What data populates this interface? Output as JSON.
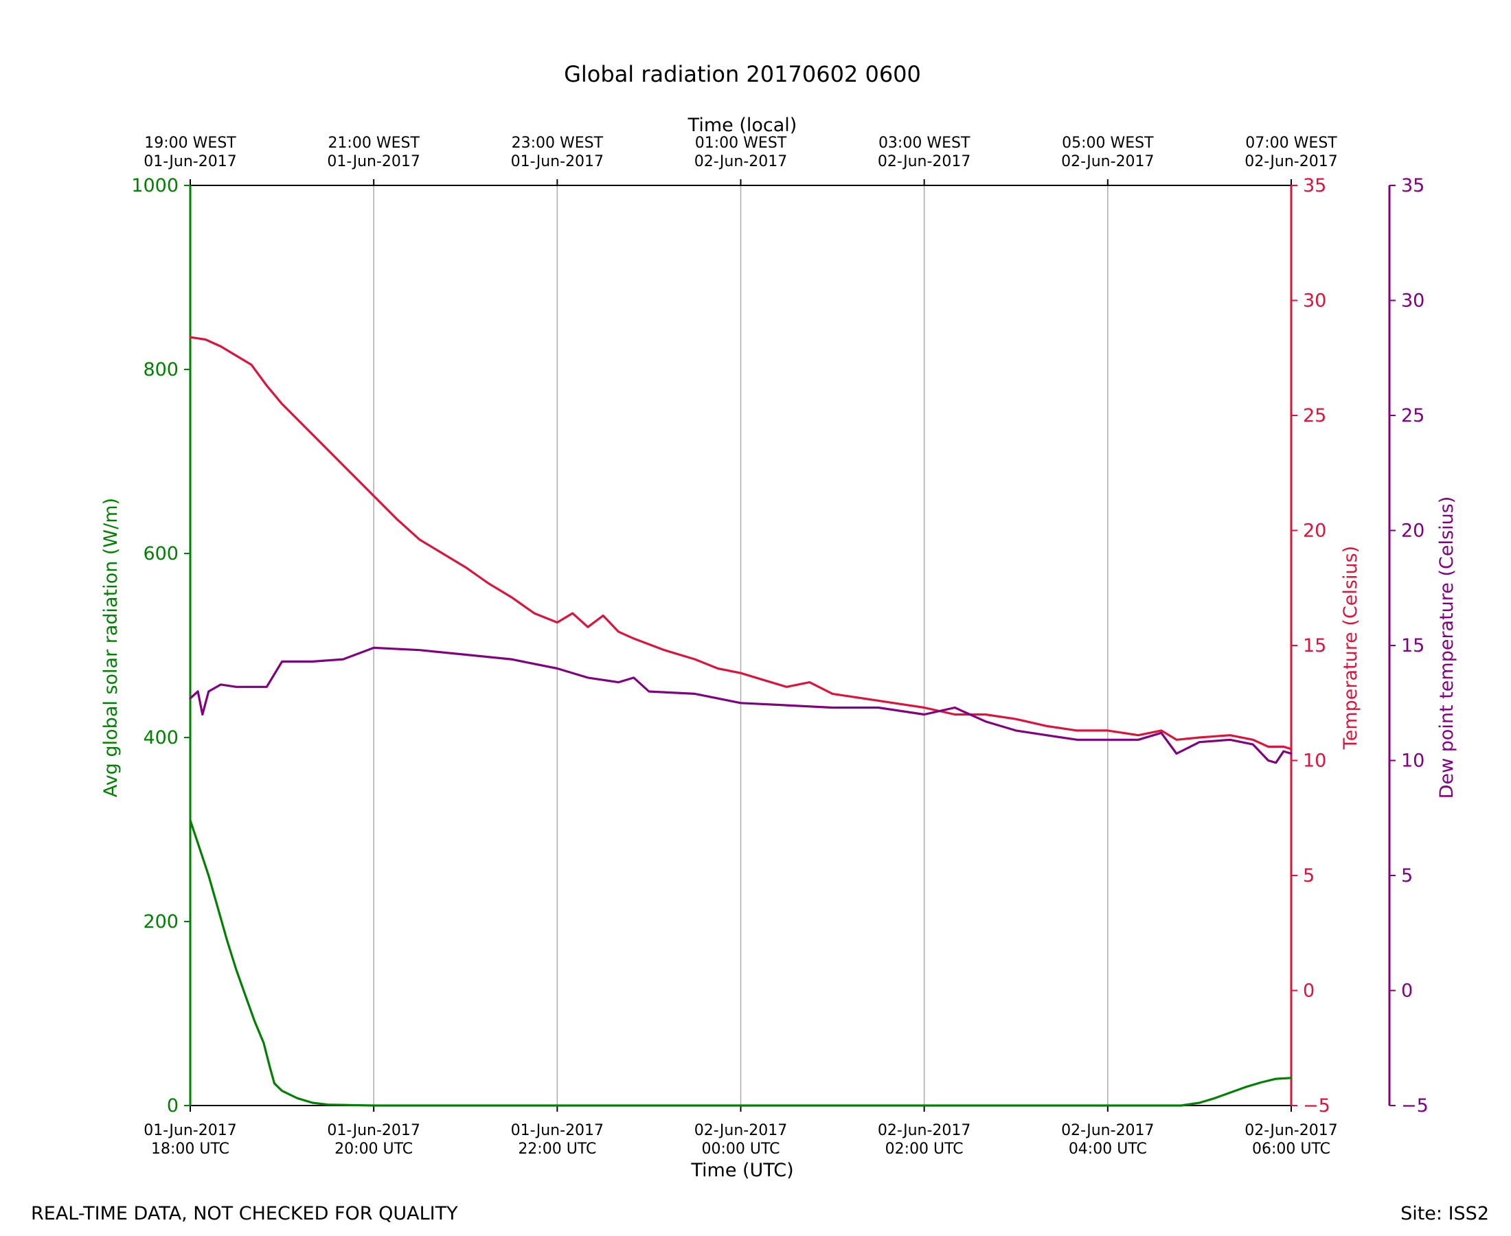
{
  "chart_data": {
    "type": "line",
    "title": "Global radiation 20170602 0600",
    "top_axis": {
      "label": "Time (local)",
      "ticks": [
        {
          "line1": "19:00 WEST",
          "line2": "01-Jun-2017"
        },
        {
          "line1": "21:00 WEST",
          "line2": "01-Jun-2017"
        },
        {
          "line1": "23:00 WEST",
          "line2": "01-Jun-2017"
        },
        {
          "line1": "01:00 WEST",
          "line2": "02-Jun-2017"
        },
        {
          "line1": "03:00 WEST",
          "line2": "02-Jun-2017"
        },
        {
          "line1": "05:00 WEST",
          "line2": "02-Jun-2017"
        },
        {
          "line1": "07:00 WEST",
          "line2": "02-Jun-2017"
        }
      ]
    },
    "x_axis": {
      "label": "Time (UTC)",
      "range": [
        "2017-06-01 18:00",
        "2017-06-02 06:00"
      ],
      "ticks": [
        {
          "line1": "01-Jun-2017",
          "line2": "18:00 UTC"
        },
        {
          "line1": "01-Jun-2017",
          "line2": "20:00 UTC"
        },
        {
          "line1": "01-Jun-2017",
          "line2": "22:00 UTC"
        },
        {
          "line1": "02-Jun-2017",
          "line2": "00:00 UTC"
        },
        {
          "line1": "02-Jun-2017",
          "line2": "02:00 UTC"
        },
        {
          "line1": "02-Jun-2017",
          "line2": "04:00 UTC"
        },
        {
          "line1": "02-Jun-2017",
          "line2": "06:00 UTC"
        }
      ],
      "grid": true
    },
    "y_left": {
      "label": "Avg global solar radiation (W/m)",
      "range": [
        0,
        1000
      ],
      "ticks": [
        "0",
        "200",
        "400",
        "600",
        "800",
        "1000"
      ],
      "color": "#008000"
    },
    "y_right_temp": {
      "label": "Temperature (Celsius)",
      "range": [
        -5,
        35
      ],
      "ticks": [
        "−5",
        "0",
        "5",
        "10",
        "15",
        "20",
        "25",
        "30",
        "35"
      ],
      "color": "#dc143c"
    },
    "y_right_dew": {
      "label": "Dew point temperature (Celsius)",
      "range": [
        -5,
        35
      ],
      "ticks": [
        "−5",
        "0",
        "5",
        "10",
        "15",
        "20",
        "25",
        "30",
        "35"
      ],
      "color": "#800080"
    },
    "series": [
      {
        "axis": "radiation",
        "color": "#008000",
        "points": [
          [
            "2017-06-01 18:00",
            310
          ],
          [
            "2017-06-01 18:06",
            280
          ],
          [
            "2017-06-01 18:12",
            250
          ],
          [
            "2017-06-01 18:18",
            215
          ],
          [
            "2017-06-01 18:24",
            180
          ],
          [
            "2017-06-01 18:30",
            148
          ],
          [
            "2017-06-01 18:36",
            120
          ],
          [
            "2017-06-01 18:42",
            92
          ],
          [
            "2017-06-01 18:48",
            68
          ],
          [
            "2017-06-01 18:52",
            42
          ],
          [
            "2017-06-01 18:55",
            24
          ],
          [
            "2017-06-01 19:00",
            16
          ],
          [
            "2017-06-01 19:10",
            8
          ],
          [
            "2017-06-01 19:20",
            3
          ],
          [
            "2017-06-01 19:30",
            1
          ],
          [
            "2017-06-01 20:00",
            0
          ],
          [
            "2017-06-01 22:00",
            0
          ],
          [
            "2017-06-02 00:00",
            0
          ],
          [
            "2017-06-02 02:00",
            0
          ],
          [
            "2017-06-02 04:00",
            0
          ],
          [
            "2017-06-02 04:48",
            0
          ],
          [
            "2017-06-02 05:00",
            3
          ],
          [
            "2017-06-02 05:10",
            8
          ],
          [
            "2017-06-02 05:20",
            14
          ],
          [
            "2017-06-02 05:30",
            20
          ],
          [
            "2017-06-02 05:40",
            25
          ],
          [
            "2017-06-02 05:50",
            29
          ],
          [
            "2017-06-02 06:00",
            30
          ]
        ]
      },
      {
        "axis": "temperature",
        "color": "#dc143c",
        "points": [
          [
            "2017-06-01 18:00",
            28.4
          ],
          [
            "2017-06-01 18:10",
            28.3
          ],
          [
            "2017-06-01 18:20",
            28.0
          ],
          [
            "2017-06-01 18:30",
            27.6
          ],
          [
            "2017-06-01 18:40",
            27.2
          ],
          [
            "2017-06-01 18:50",
            26.3
          ],
          [
            "2017-06-01 19:00",
            25.5
          ],
          [
            "2017-06-01 19:15",
            24.5
          ],
          [
            "2017-06-01 19:30",
            23.5
          ],
          [
            "2017-06-01 19:45",
            22.5
          ],
          [
            "2017-06-01 20:00",
            21.5
          ],
          [
            "2017-06-01 20:15",
            20.5
          ],
          [
            "2017-06-01 20:30",
            19.6
          ],
          [
            "2017-06-01 20:45",
            19.0
          ],
          [
            "2017-06-01 21:00",
            18.4
          ],
          [
            "2017-06-01 21:15",
            17.7
          ],
          [
            "2017-06-01 21:30",
            17.1
          ],
          [
            "2017-06-01 21:45",
            16.4
          ],
          [
            "2017-06-01 22:00",
            16.0
          ],
          [
            "2017-06-01 22:10",
            16.4
          ],
          [
            "2017-06-01 22:20",
            15.8
          ],
          [
            "2017-06-01 22:30",
            16.3
          ],
          [
            "2017-06-01 22:40",
            15.6
          ],
          [
            "2017-06-01 22:50",
            15.3
          ],
          [
            "2017-06-01 23:10",
            14.8
          ],
          [
            "2017-06-01 23:30",
            14.4
          ],
          [
            "2017-06-01 23:45",
            14.0
          ],
          [
            "2017-06-02 00:00",
            13.8
          ],
          [
            "2017-06-02 00:15",
            13.5
          ],
          [
            "2017-06-02 00:30",
            13.2
          ],
          [
            "2017-06-02 00:45",
            13.4
          ],
          [
            "2017-06-02 01:00",
            12.9
          ],
          [
            "2017-06-02 01:30",
            12.6
          ],
          [
            "2017-06-02 02:00",
            12.3
          ],
          [
            "2017-06-02 02:20",
            12.0
          ],
          [
            "2017-06-02 02:40",
            12.0
          ],
          [
            "2017-06-02 03:00",
            11.8
          ],
          [
            "2017-06-02 03:20",
            11.5
          ],
          [
            "2017-06-02 03:40",
            11.3
          ],
          [
            "2017-06-02 04:00",
            11.3
          ],
          [
            "2017-06-02 04:20",
            11.1
          ],
          [
            "2017-06-02 04:35",
            11.3
          ],
          [
            "2017-06-02 04:45",
            10.9
          ],
          [
            "2017-06-02 05:00",
            11.0
          ],
          [
            "2017-06-02 05:20",
            11.1
          ],
          [
            "2017-06-02 05:35",
            10.9
          ],
          [
            "2017-06-02 05:45",
            10.6
          ],
          [
            "2017-06-02 05:55",
            10.6
          ],
          [
            "2017-06-02 06:00",
            10.5
          ]
        ]
      },
      {
        "axis": "dewpoint",
        "color": "#800080",
        "points": [
          [
            "2017-06-01 18:00",
            12.7
          ],
          [
            "2017-06-01 18:05",
            13.0
          ],
          [
            "2017-06-01 18:08",
            12.0
          ],
          [
            "2017-06-01 18:12",
            13.0
          ],
          [
            "2017-06-01 18:20",
            13.3
          ],
          [
            "2017-06-01 18:30",
            13.2
          ],
          [
            "2017-06-01 18:40",
            13.2
          ],
          [
            "2017-06-01 18:50",
            13.2
          ],
          [
            "2017-06-01 19:00",
            14.3
          ],
          [
            "2017-06-01 19:20",
            14.3
          ],
          [
            "2017-06-01 19:40",
            14.4
          ],
          [
            "2017-06-01 20:00",
            14.9
          ],
          [
            "2017-06-01 20:30",
            14.8
          ],
          [
            "2017-06-01 21:00",
            14.6
          ],
          [
            "2017-06-01 21:30",
            14.4
          ],
          [
            "2017-06-01 22:00",
            14.0
          ],
          [
            "2017-06-01 22:20",
            13.6
          ],
          [
            "2017-06-01 22:40",
            13.4
          ],
          [
            "2017-06-01 22:50",
            13.6
          ],
          [
            "2017-06-01 23:00",
            13.0
          ],
          [
            "2017-06-01 23:30",
            12.9
          ],
          [
            "2017-06-02 00:00",
            12.5
          ],
          [
            "2017-06-02 00:30",
            12.4
          ],
          [
            "2017-06-02 01:00",
            12.3
          ],
          [
            "2017-06-02 01:30",
            12.3
          ],
          [
            "2017-06-02 02:00",
            12.0
          ],
          [
            "2017-06-02 02:20",
            12.3
          ],
          [
            "2017-06-02 02:40",
            11.7
          ],
          [
            "2017-06-02 03:00",
            11.3
          ],
          [
            "2017-06-02 03:20",
            11.1
          ],
          [
            "2017-06-02 03:40",
            10.9
          ],
          [
            "2017-06-02 04:00",
            10.9
          ],
          [
            "2017-06-02 04:20",
            10.9
          ],
          [
            "2017-06-02 04:35",
            11.2
          ],
          [
            "2017-06-02 04:45",
            10.3
          ],
          [
            "2017-06-02 05:00",
            10.8
          ],
          [
            "2017-06-02 05:20",
            10.9
          ],
          [
            "2017-06-02 05:35",
            10.7
          ],
          [
            "2017-06-02 05:45",
            10.0
          ],
          [
            "2017-06-02 05:50",
            9.9
          ],
          [
            "2017-06-02 05:55",
            10.4
          ],
          [
            "2017-06-02 06:00",
            10.3
          ]
        ]
      }
    ]
  },
  "footer": {
    "left_note": "REAL-TIME DATA, NOT CHECKED FOR QUALITY",
    "site": "Site: ISS2"
  }
}
